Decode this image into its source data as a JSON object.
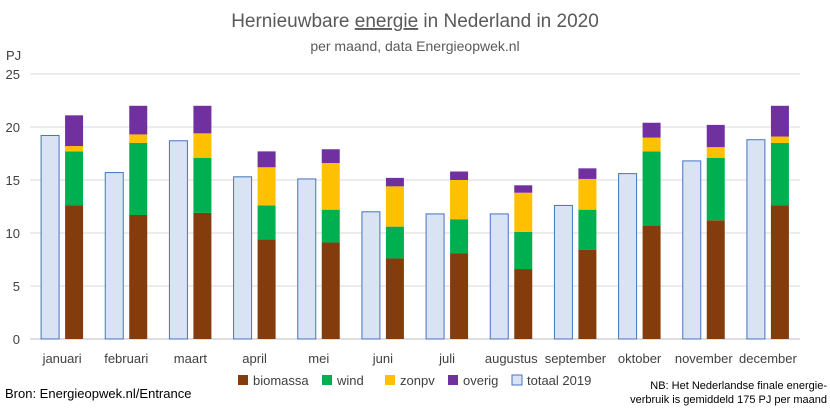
{
  "chart_data": {
    "type": "bar",
    "title_pre": "Hernieuwbare ",
    "title_underlined": "energie",
    "title_post": " in Nederland in 2020",
    "subtitle": "per maand, data Energieopwek.nl",
    "ylabel": "PJ",
    "ylim": [
      0,
      25
    ],
    "yticks": [
      0,
      5,
      10,
      15,
      20,
      25
    ],
    "grid": true,
    "legend_position": "bottom",
    "categories": [
      "januari",
      "februari",
      "maart",
      "april",
      "mei",
      "juni",
      "juli",
      "augustus",
      "september",
      "oktober",
      "november",
      "december"
    ],
    "comparison_series": {
      "name": "totaal 2019",
      "color": "#dae3f3",
      "border": "#4472c4",
      "values": [
        19.2,
        15.7,
        18.7,
        15.3,
        15.1,
        12.0,
        11.8,
        11.8,
        12.6,
        15.6,
        16.8,
        18.8
      ]
    },
    "stacked_series": [
      {
        "name": "biomassa",
        "color": "#843c0c",
        "values": [
          12.6,
          11.7,
          11.9,
          9.4,
          9.1,
          7.6,
          8.1,
          6.6,
          8.4,
          10.7,
          11.2,
          12.6
        ]
      },
      {
        "name": "wind",
        "color": "#00b050",
        "values": [
          5.1,
          6.8,
          5.2,
          3.2,
          3.1,
          3.0,
          3.2,
          3.5,
          3.8,
          7.0,
          5.9,
          5.9
        ]
      },
      {
        "name": "zonpv",
        "color": "#ffc000",
        "values": [
          0.5,
          0.8,
          2.3,
          3.6,
          4.4,
          3.8,
          3.7,
          3.7,
          2.9,
          1.3,
          1.0,
          0.6
        ]
      },
      {
        "name": "overig",
        "color": "#7030a0",
        "values": [
          2.9,
          2.7,
          2.6,
          1.5,
          1.3,
          0.8,
          0.8,
          0.7,
          1.0,
          1.4,
          2.1,
          2.9
        ]
      }
    ],
    "legend_order": [
      "biomassa",
      "wind",
      "zonpv",
      "overig",
      "totaal 2019"
    ]
  },
  "source": "Bron: Energieopwek.nl/Entrance",
  "note_line1": "NB: Het Nederlandse finale energie-",
  "note_line2": "verbruik is gemiddeld 175 PJ per maand"
}
